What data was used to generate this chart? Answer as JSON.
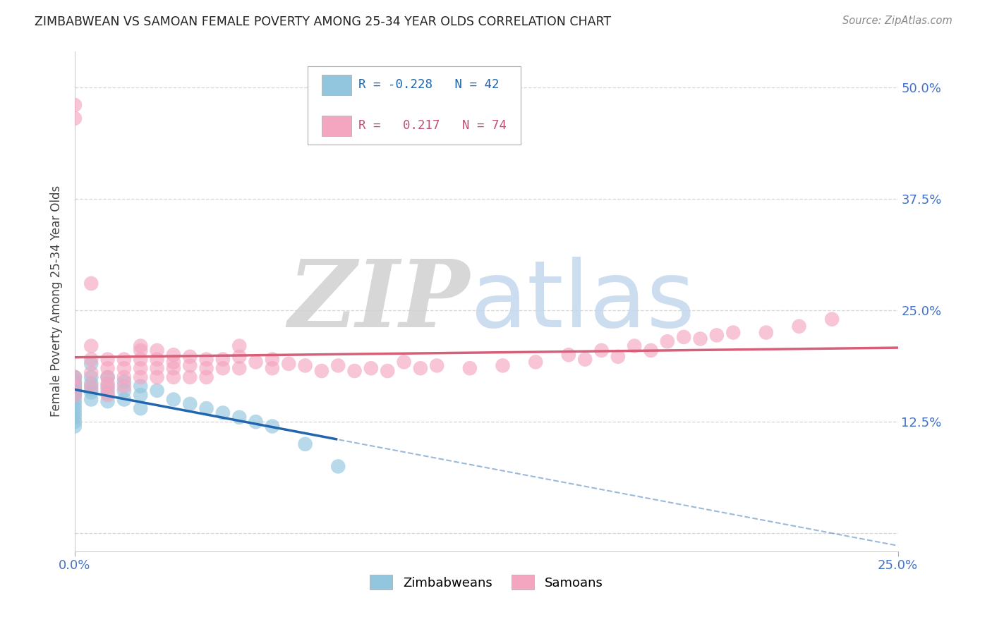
{
  "title": "ZIMBABWEAN VS SAMOAN FEMALE POVERTY AMONG 25-34 YEAR OLDS CORRELATION CHART",
  "source": "Source: ZipAtlas.com",
  "ylabel": "Female Poverty Among 25-34 Year Olds",
  "legend_r_zim": "-0.228",
  "legend_n_zim": "42",
  "legend_r_sam": "0.217",
  "legend_n_sam": "74",
  "zim_color": "#92c5de",
  "sam_color": "#f4a6c0",
  "zim_line_color": "#2166ac",
  "sam_line_color": "#d6607a",
  "xlim": [
    0.0,
    0.25
  ],
  "ylim": [
    -0.02,
    0.54
  ],
  "ytick_values": [
    0.0,
    0.125,
    0.25,
    0.375,
    0.5
  ],
  "ytick_labels": [
    "",
    "12.5%",
    "25.0%",
    "37.5%",
    "50.0%"
  ],
  "xtick_values": [
    0.0,
    0.25
  ],
  "xtick_labels": [
    "0.0%",
    "25.0%"
  ],
  "background_color": "#ffffff",
  "grid_color": "#cccccc",
  "watermark_zip_color": "#d0d0d0",
  "watermark_atlas_color": "#c5d8ee",
  "zimbabweans_x": [
    0.0,
    0.0,
    0.0,
    0.0,
    0.0,
    0.0,
    0.0,
    0.0,
    0.0,
    0.0,
    0.0,
    0.0,
    0.0,
    0.0,
    0.0,
    0.0,
    0.005,
    0.005,
    0.005,
    0.005,
    0.005,
    0.005,
    0.01,
    0.01,
    0.01,
    0.01,
    0.015,
    0.015,
    0.015,
    0.02,
    0.02,
    0.02,
    0.025,
    0.03,
    0.035,
    0.04,
    0.045,
    0.05,
    0.055,
    0.06,
    0.07,
    0.08
  ],
  "zimbabweans_y": [
    0.175,
    0.175,
    0.17,
    0.168,
    0.165,
    0.162,
    0.16,
    0.158,
    0.155,
    0.15,
    0.145,
    0.14,
    0.135,
    0.13,
    0.125,
    0.12,
    0.19,
    0.175,
    0.168,
    0.162,
    0.158,
    0.15,
    0.175,
    0.165,
    0.158,
    0.148,
    0.17,
    0.16,
    0.15,
    0.165,
    0.155,
    0.14,
    0.16,
    0.15,
    0.145,
    0.14,
    0.135,
    0.13,
    0.125,
    0.12,
    0.1,
    0.075
  ],
  "samoans_x": [
    0.0,
    0.0,
    0.0,
    0.0,
    0.0,
    0.005,
    0.005,
    0.005,
    0.005,
    0.005,
    0.01,
    0.01,
    0.01,
    0.01,
    0.01,
    0.01,
    0.015,
    0.015,
    0.015,
    0.015,
    0.02,
    0.02,
    0.02,
    0.02,
    0.02,
    0.025,
    0.025,
    0.025,
    0.025,
    0.03,
    0.03,
    0.03,
    0.03,
    0.035,
    0.035,
    0.035,
    0.04,
    0.04,
    0.04,
    0.045,
    0.045,
    0.05,
    0.05,
    0.05,
    0.055,
    0.06,
    0.06,
    0.065,
    0.07,
    0.075,
    0.08,
    0.085,
    0.09,
    0.095,
    0.1,
    0.105,
    0.11,
    0.12,
    0.13,
    0.14,
    0.15,
    0.155,
    0.16,
    0.165,
    0.17,
    0.175,
    0.18,
    0.185,
    0.19,
    0.195,
    0.2,
    0.21,
    0.22,
    0.23
  ],
  "samoans_y": [
    0.48,
    0.465,
    0.175,
    0.165,
    0.155,
    0.28,
    0.21,
    0.195,
    0.18,
    0.165,
    0.195,
    0.185,
    0.175,
    0.168,
    0.162,
    0.155,
    0.195,
    0.185,
    0.175,
    0.165,
    0.21,
    0.205,
    0.195,
    0.185,
    0.175,
    0.205,
    0.195,
    0.185,
    0.175,
    0.2,
    0.192,
    0.185,
    0.175,
    0.198,
    0.188,
    0.175,
    0.195,
    0.185,
    0.175,
    0.195,
    0.185,
    0.21,
    0.198,
    0.185,
    0.192,
    0.195,
    0.185,
    0.19,
    0.188,
    0.182,
    0.188,
    0.182,
    0.185,
    0.182,
    0.192,
    0.185,
    0.188,
    0.185,
    0.188,
    0.192,
    0.2,
    0.195,
    0.205,
    0.198,
    0.21,
    0.205,
    0.215,
    0.22,
    0.218,
    0.222,
    0.225,
    0.225,
    0.232,
    0.24
  ]
}
